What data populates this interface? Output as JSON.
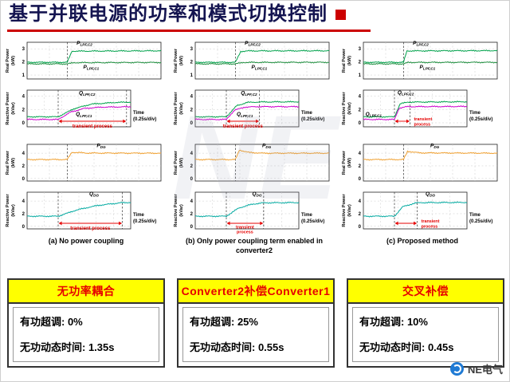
{
  "title": {
    "text": "基于并联电源的功率和模式切换控制"
  },
  "watermark": {
    "text": "NE"
  },
  "logo": {
    "text": "NE电气"
  },
  "labels": {
    "time_label": "Time (0.25s/div)",
    "transient_label": "transient process"
  },
  "summary_boxes": [
    {
      "header": "无功率耦合",
      "lines": [
        "有功超调: 0%",
        "无功动态时间: 1.35s"
      ]
    },
    {
      "header": "Converter2补偿Converter1",
      "lines": [
        "有功超调: 25%",
        "无功动态时间: 0.55s"
      ]
    },
    {
      "header": "交叉补偿",
      "lines": [
        "有功超调: 10%",
        "无功动态时间: 0.45s"
      ]
    }
  ],
  "chart_data": [
    {
      "type": "line",
      "caption": "(a) No power coupling",
      "xlabel": "Time (0.25s/div)",
      "panels": [
        {
          "ylabel": "Real Power (kW)",
          "ylim": [
            0.7,
            3.5
          ],
          "yticks": [
            3,
            2,
            1
          ],
          "event_x": 0.3,
          "series": [
            {
              "name": "P_LPF,C2",
              "color": "#00a14b",
              "points": [
                [
                  0,
                  1.97
                ],
                [
                  0.3,
                  1.97
                ],
                [
                  0.335,
                  2.82
                ],
                [
                  1,
                  2.85
                ]
              ]
            },
            {
              "name": "P_LPF,C1",
              "color": "#1e8e3e",
              "points": [
                [
                  0,
                  1.85
                ],
                [
                  0.3,
                  1.85
                ],
                [
                  0.35,
                  1.94
                ],
                [
                  1,
                  1.96
                ]
              ]
            }
          ],
          "labels": [
            {
              "x": 0.37,
              "y": 3.33,
              "main": "P",
              "sub": "LPF,C2"
            },
            {
              "x": 0.42,
              "y": 1.5,
              "main": "P",
              "sub": "LPF,C1"
            }
          ]
        },
        {
          "ylabel": "Reactive Power (kVar)",
          "ylim": [
            -0.6,
            4.9
          ],
          "yticks": [
            4,
            2,
            0
          ],
          "series": [
            {
              "name": "Q_LPF,C2",
              "color": "#00a14b",
              "points": [
                [
                  0,
                  0.9
                ],
                [
                  0.3,
                  0.9
                ],
                [
                  0.45,
                  2.1
                ],
                [
                  0.62,
                  2.8
                ],
                [
                  0.85,
                  3.05
                ],
                [
                  1,
                  3.1
                ]
              ]
            },
            {
              "name": "Q_LPF,C1",
              "color": "#cc00cc",
              "points": [
                [
                  0,
                  0.5
                ],
                [
                  0.3,
                  0.5
                ],
                [
                  0.42,
                  1.6
                ],
                [
                  0.55,
                  2.15
                ],
                [
                  0.72,
                  2.35
                ],
                [
                  1,
                  2.4
                ]
              ]
            }
          ],
          "labels": [
            {
              "x": 0.5,
              "y": 4.25,
              "main": "Q",
              "sub": "LPF,C2"
            },
            {
              "x": 0.47,
              "y": 1.05,
              "main": "Q",
              "sub": "LPF,C1"
            }
          ],
          "transient": {
            "x1": 0.3,
            "x2": 0.96,
            "lp": "below"
          },
          "time_label": true
        },
        {
          "ylabel": "Real Power (kW)",
          "ylim": [
            -0.4,
            5.4
          ],
          "yticks": [
            4,
            2,
            0
          ],
          "event_x": 0.3,
          "series": [
            {
              "name": "P_DG",
              "color": "#f0a030",
              "points": [
                [
                  0,
                  3.0
                ],
                [
                  0.3,
                  3.0
                ],
                [
                  0.335,
                  4.15
                ],
                [
                  0.45,
                  4.02
                ],
                [
                  1,
                  4.0
                ]
              ]
            }
          ],
          "labels": [
            {
              "x": 0.52,
              "y": 4.95,
              "main": "P",
              "sub": "DG"
            }
          ]
        },
        {
          "ylabel": "Reactive Power (kVar)",
          "ylim": [
            -0.4,
            5.4
          ],
          "yticks": [
            4,
            2,
            0
          ],
          "series": [
            {
              "name": "Q_DG",
              "color": "#00a9a0",
              "points": [
                [
                  0,
                  1.6
                ],
                [
                  0.3,
                  1.6
                ],
                [
                  0.48,
                  2.6
                ],
                [
                  0.68,
                  3.3
                ],
                [
                  0.9,
                  3.72
                ],
                [
                  1,
                  3.78
                ]
              ]
            }
          ],
          "labels": [
            {
              "x": 0.6,
              "y": 4.9,
              "main": "Q",
              "sub": "DG"
            }
          ],
          "transient": {
            "x1": 0.3,
            "x2": 0.92,
            "lp": "below"
          },
          "time_label": true
        }
      ]
    },
    {
      "type": "line",
      "caption": "(b) Only power coupling term enabled in converter2",
      "xlabel": "Time (0.25s/div)",
      "panels": [
        {
          "ylabel": "Real Power (kW)",
          "ylim": [
            0.7,
            3.5
          ],
          "yticks": [
            3,
            2,
            1
          ],
          "event_x": 0.3,
          "series": [
            {
              "name": "P_LPF,C2",
              "color": "#00a14b",
              "points": [
                [
                  0,
                  1.97
                ],
                [
                  0.3,
                  1.97
                ],
                [
                  0.34,
                  2.8
                ],
                [
                  0.4,
                  2.84
                ],
                [
                  1,
                  2.85
                ]
              ]
            },
            {
              "name": "P_LPF,C1",
              "color": "#1e8e3e",
              "points": [
                [
                  0,
                  1.85
                ],
                [
                  0.3,
                  1.85
                ],
                [
                  0.36,
                  1.96
                ],
                [
                  1,
                  1.97
                ]
              ]
            }
          ],
          "labels": [
            {
              "x": 0.37,
              "y": 3.33,
              "main": "P",
              "sub": "LPF,C2"
            },
            {
              "x": 0.42,
              "y": 1.5,
              "main": "P",
              "sub": "LPF,C1"
            }
          ]
        },
        {
          "ylabel": "Reactive Power (kVar)",
          "ylim": [
            -0.6,
            4.9
          ],
          "yticks": [
            4,
            2,
            0
          ],
          "series": [
            {
              "name": "Q_LPF,C2",
              "color": "#00a14b",
              "points": [
                [
                  0,
                  0.9
                ],
                [
                  0.3,
                  0.9
                ],
                [
                  0.4,
                  2.55
                ],
                [
                  0.5,
                  3.05
                ],
                [
                  0.62,
                  3.12
                ],
                [
                  1,
                  3.15
                ]
              ]
            },
            {
              "name": "Q_LPF,C1",
              "color": "#cc00cc",
              "points": [
                [
                  0,
                  0.5
                ],
                [
                  0.3,
                  0.5
                ],
                [
                  0.38,
                  1.9
                ],
                [
                  0.48,
                  2.35
                ],
                [
                  0.6,
                  2.42
                ],
                [
                  1,
                  2.42
                ]
              ]
            }
          ],
          "labels": [
            {
              "x": 0.44,
              "y": 4.25,
              "main": "Q",
              "sub": "LPF,C2"
            },
            {
              "x": 0.4,
              "y": 1.05,
              "main": "Q",
              "sub": "LPF,C1"
            }
          ],
          "transient": {
            "x1": 0.3,
            "x2": 0.62,
            "lp": "below"
          },
          "time_label": true
        },
        {
          "ylabel": "Real Power (kW)",
          "ylim": [
            -0.4,
            5.4
          ],
          "yticks": [
            4,
            2,
            0
          ],
          "event_x": 0.3,
          "series": [
            {
              "name": "P_DG",
              "color": "#f0a030",
              "points": [
                [
                  0,
                  3.0
                ],
                [
                  0.3,
                  3.0
                ],
                [
                  0.33,
                  4.5
                ],
                [
                  0.4,
                  4.12
                ],
                [
                  0.5,
                  4.0
                ],
                [
                  1,
                  4.0
                ]
              ]
            }
          ],
          "labels": [
            {
              "x": 0.5,
              "y": 4.95,
              "main": "P",
              "sub": "DG"
            }
          ]
        },
        {
          "ylabel": "Reactive Power (kVar)",
          "ylim": [
            -0.4,
            5.4
          ],
          "yticks": [
            4,
            2,
            0
          ],
          "series": [
            {
              "name": "Q_DG",
              "color": "#00a9a0",
              "points": [
                [
                  0,
                  1.6
                ],
                [
                  0.3,
                  1.6
                ],
                [
                  0.42,
                  2.9
                ],
                [
                  0.55,
                  3.5
                ],
                [
                  0.66,
                  3.72
                ],
                [
                  1,
                  3.76
                ]
              ]
            }
          ],
          "labels": [
            {
              "x": 0.55,
              "y": 4.9,
              "main": "Q",
              "sub": "DG"
            }
          ],
          "transient": {
            "x1": 0.3,
            "x2": 0.66,
            "lp": "below2"
          },
          "time_label": true
        }
      ]
    },
    {
      "type": "line",
      "caption": "(c) Proposed method",
      "xlabel": "Time (0.25s/div)",
      "panels": [
        {
          "ylabel": "Real Power (kW)",
          "ylim": [
            0.7,
            3.5
          ],
          "yticks": [
            3,
            2,
            1
          ],
          "event_x": 0.3,
          "series": [
            {
              "name": "P_LPF,C2",
              "color": "#00a14b",
              "points": [
                [
                  0,
                  1.97
                ],
                [
                  0.3,
                  1.97
                ],
                [
                  0.325,
                  2.84
                ],
                [
                  1,
                  2.86
                ]
              ]
            },
            {
              "name": "P_LPF,C1",
              "color": "#1e8e3e",
              "points": [
                [
                  0,
                  1.85
                ],
                [
                  0.3,
                  1.85
                ],
                [
                  0.335,
                  1.96
                ],
                [
                  1,
                  1.97
                ]
              ]
            }
          ],
          "labels": [
            {
              "x": 0.37,
              "y": 3.33,
              "main": "P",
              "sub": "LPF,C2"
            },
            {
              "x": 0.42,
              "y": 1.5,
              "main": "P",
              "sub": "LPF,C1"
            }
          ]
        },
        {
          "ylabel": "Reactive Power (kVar)",
          "ylim": [
            -0.6,
            4.9
          ],
          "yticks": [
            4,
            2,
            0
          ],
          "series": [
            {
              "name": "Q_LPF,C2",
              "color": "#00a14b",
              "points": [
                [
                  0,
                  0.9
                ],
                [
                  0.3,
                  0.9
                ],
                [
                  0.355,
                  2.85
                ],
                [
                  0.43,
                  3.1
                ],
                [
                  1,
                  3.15
                ]
              ]
            },
            {
              "name": "Q_LPF,C1",
              "color": "#cc00cc",
              "points": [
                [
                  0,
                  0.5
                ],
                [
                  0.3,
                  0.5
                ],
                [
                  0.345,
                  2.2
                ],
                [
                  0.42,
                  2.42
                ],
                [
                  1,
                  2.45
                ]
              ]
            }
          ],
          "labels": [
            {
              "x": 0.33,
              "y": 4.3,
              "main": "Q",
              "sub": "LPF,C2"
            },
            {
              "x": 0.02,
              "y": 1.1,
              "main": "Q",
              "sub": "LPF,C1"
            }
          ],
          "transient": {
            "x1": 0.3,
            "x2": 0.45,
            "lp": "right"
          },
          "time_label": true
        },
        {
          "ylabel": "Real Power (kW)",
          "ylim": [
            -0.4,
            5.4
          ],
          "yticks": [
            4,
            2,
            0
          ],
          "event_x": 0.3,
          "series": [
            {
              "name": "P_DG",
              "color": "#f0a030",
              "points": [
                [
                  0,
                  3.0
                ],
                [
                  0.3,
                  3.0
                ],
                [
                  0.33,
                  4.3
                ],
                [
                  0.42,
                  4.05
                ],
                [
                  1,
                  4.0
                ]
              ]
            }
          ],
          "labels": [
            {
              "x": 0.5,
              "y": 4.95,
              "main": "P",
              "sub": "DG"
            }
          ]
        },
        {
          "ylabel": "Reactive Power (kVar)",
          "ylim": [
            -0.4,
            5.4
          ],
          "yticks": [
            4,
            2,
            0
          ],
          "series": [
            {
              "name": "Q_DG",
              "color": "#00a9a0",
              "points": [
                [
                  0,
                  1.6
                ],
                [
                  0.3,
                  1.6
                ],
                [
                  0.38,
                  3.1
                ],
                [
                  0.5,
                  3.68
                ],
                [
                  0.56,
                  3.75
                ],
                [
                  1,
                  3.78
                ]
              ]
            }
          ],
          "labels": [
            {
              "x": 0.6,
              "y": 4.9,
              "main": "Q",
              "sub": "DG"
            }
          ],
          "transient": {
            "x1": 0.3,
            "x2": 0.52,
            "lp": "right"
          },
          "time_label": true
        }
      ]
    }
  ]
}
